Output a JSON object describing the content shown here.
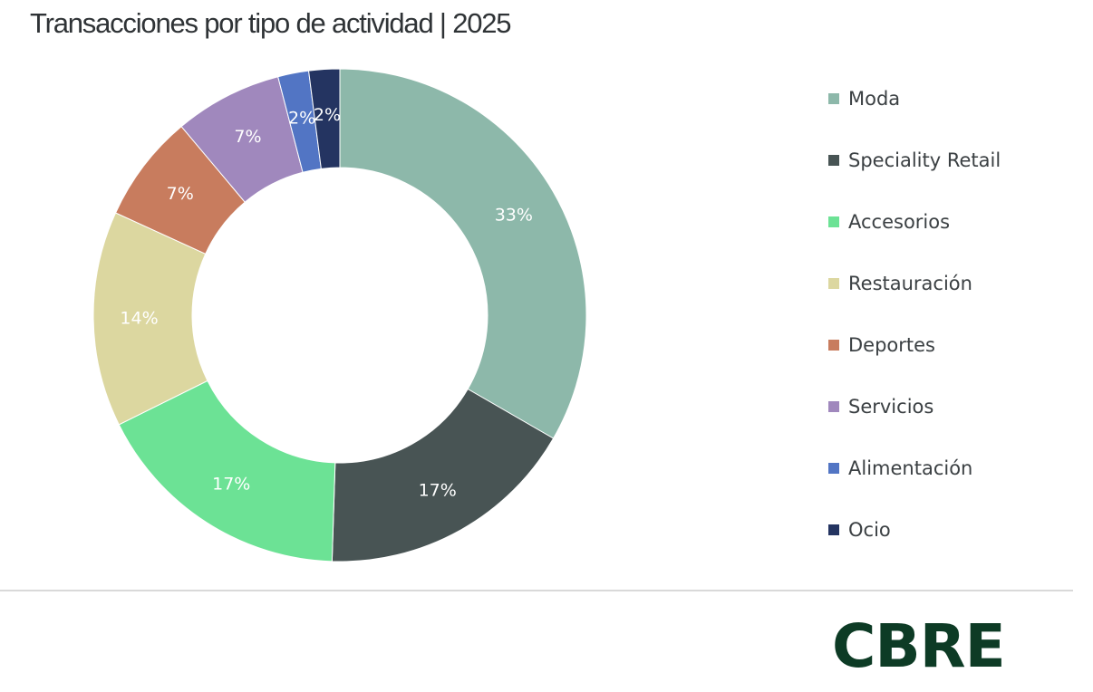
{
  "chart_data": {
    "type": "pie",
    "subtype": "donut",
    "title": "Transacciones por tipo de actividad | 2025",
    "unit": "%",
    "categories": [
      "Moda",
      "Speciality Retail",
      "Accesorios",
      "Restauración",
      "Deportes",
      "Servicios",
      "Alimentación",
      "Ocio"
    ],
    "values": [
      33,
      17,
      17,
      14,
      7,
      7,
      2,
      2
    ],
    "labels": [
      "33%",
      "17%",
      "17%",
      "14%",
      "7%",
      "7%",
      "2%",
      "2%"
    ],
    "colors": [
      "#8db8aa",
      "#485454",
      "#6ce295",
      "#dcd7a0",
      "#c87c5e",
      "#a088bd",
      "#5275c4",
      "#243461"
    ],
    "legend_position": "right"
  },
  "brand": {
    "logo_text": "CBRE",
    "color": "#0d3b25"
  }
}
